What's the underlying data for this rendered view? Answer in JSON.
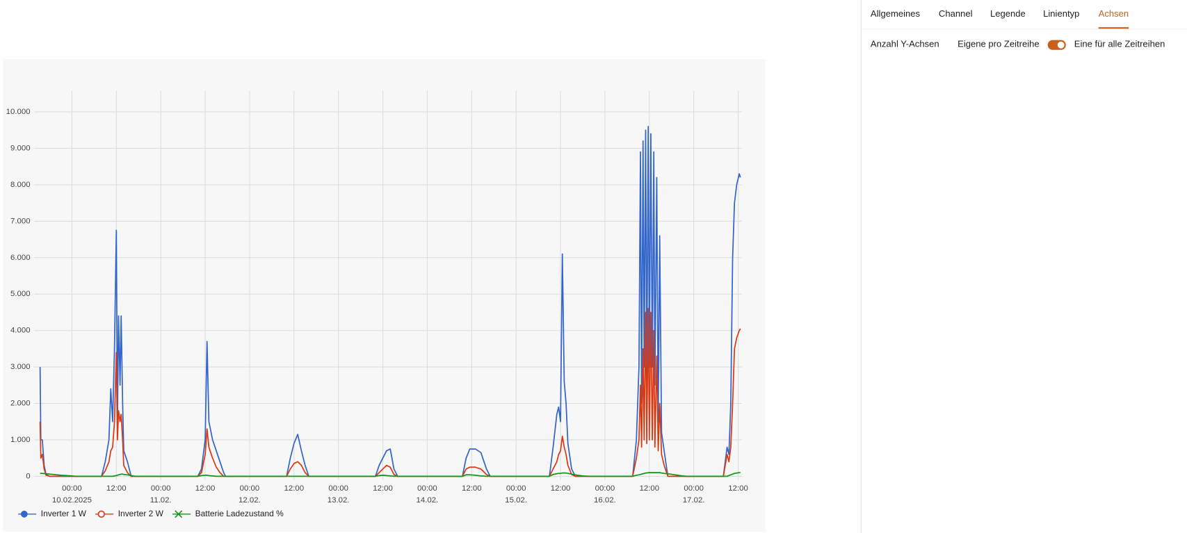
{
  "tabs": [
    "Allgemeines",
    "Channel",
    "Legende",
    "Linientyp",
    "Achsen"
  ],
  "active_tab": 4,
  "axes_setting": {
    "label": "Anzahl Y-Achsen",
    "option_left": "Eigene pro Zeitreihe",
    "option_right": "Eine für alle Zeitreihen",
    "toggle_on": true
  },
  "chart_data": {
    "type": "line",
    "x": [
      "2025-02-09 15:24",
      "2025-02-09 15:36",
      "2025-02-09 16:00",
      "2025-02-09 16:30",
      "2025-02-09 17:00",
      "2025-02-09 18:00",
      "2025-02-09 21:00",
      "2025-02-10 00:00",
      "2025-02-10 01:00",
      "2025-02-10 08:00",
      "2025-02-10 09:00",
      "2025-02-10 10:00",
      "2025-02-10 10:30",
      "2025-02-10 11:00",
      "2025-02-10 11:30",
      "2025-02-10 12:00",
      "2025-02-10 12:18",
      "2025-02-10 12:36",
      "2025-02-10 13:00",
      "2025-02-10 13:18",
      "2025-02-10 13:42",
      "2025-02-10 14:00",
      "2025-02-10 15:00",
      "2025-02-10 16:00",
      "2025-02-10 17:00",
      "2025-02-11 10:00",
      "2025-02-11 11:00",
      "2025-02-11 12:00",
      "2025-02-11 12:30",
      "2025-02-11 13:00",
      "2025-02-11 14:00",
      "2025-02-11 15:00",
      "2025-02-11 16:00",
      "2025-02-11 17:00",
      "2025-02-11 17:30",
      "2025-02-12 10:00",
      "2025-02-12 11:00",
      "2025-02-12 12:00",
      "2025-02-12 13:00",
      "2025-02-12 14:00",
      "2025-02-12 15:00",
      "2025-02-12 16:00",
      "2025-02-13 10:00",
      "2025-02-13 11:00",
      "2025-02-13 12:00",
      "2025-02-13 13:00",
      "2025-02-13 14:00",
      "2025-02-13 15:00",
      "2025-02-13 16:00",
      "2025-02-14 09:30",
      "2025-02-14 10:30",
      "2025-02-14 11:30",
      "2025-02-14 13:00",
      "2025-02-14 14:30",
      "2025-02-14 16:00",
      "2025-02-14 17:00",
      "2025-02-15 09:00",
      "2025-02-15 10:00",
      "2025-02-15 11:00",
      "2025-02-15 11:30",
      "2025-02-15 12:00",
      "2025-02-15 12:30",
      "2025-02-15 13:00",
      "2025-02-15 13:30",
      "2025-02-15 14:00",
      "2025-02-15 15:00",
      "2025-02-15 16:00",
      "2025-02-15 18:00",
      "2025-02-15 20:00",
      "2025-02-16 07:30",
      "2025-02-16 08:30",
      "2025-02-16 09:12",
      "2025-02-16 09:36",
      "2025-02-16 09:54",
      "2025-02-16 10:18",
      "2025-02-16 10:36",
      "2025-02-16 11:00",
      "2025-02-16 11:18",
      "2025-02-16 11:42",
      "2025-02-16 12:00",
      "2025-02-16 12:24",
      "2025-02-16 12:48",
      "2025-02-16 13:12",
      "2025-02-16 13:30",
      "2025-02-16 14:00",
      "2025-02-16 14:24",
      "2025-02-16 14:48",
      "2025-02-16 15:18",
      "2025-02-16 16:00",
      "2025-02-16 17:00",
      "2025-02-16 19:00",
      "2025-02-16 21:00",
      "2025-02-16 22:00",
      "2025-02-17 08:00",
      "2025-02-17 09:00",
      "2025-02-17 09:30",
      "2025-02-17 10:00",
      "2025-02-17 10:30",
      "2025-02-17 11:00",
      "2025-02-17 11:36",
      "2025-02-17 12:18",
      "2025-02-17 12:36"
    ],
    "series": [
      {
        "name": "Inverter 1 W",
        "color": "#3366cc",
        "marker": "circle",
        "values": [
          3000,
          1000,
          1000,
          300,
          50,
          0,
          0,
          0,
          0,
          0,
          400,
          1000,
          2400,
          1500,
          3500,
          6750,
          1500,
          4400,
          2500,
          4400,
          2000,
          700,
          400,
          0,
          0,
          0,
          200,
          1000,
          3700,
          1500,
          1000,
          700,
          400,
          100,
          0,
          0,
          500,
          900,
          1150,
          700,
          300,
          0,
          0,
          300,
          500,
          700,
          750,
          200,
          0,
          0,
          500,
          750,
          750,
          650,
          200,
          0,
          0,
          800,
          1700,
          1900,
          1500,
          6100,
          2600,
          2000,
          900,
          200,
          0,
          0,
          0,
          0,
          1000,
          3000,
          8900,
          2000,
          9200,
          3000,
          9500,
          2500,
          9600,
          3000,
          9400,
          3000,
          8900,
          2500,
          8200,
          1500,
          6600,
          1200,
          700,
          0,
          0,
          0,
          0,
          0,
          800,
          600,
          2000,
          6000,
          7500,
          8000,
          8300,
          8200
        ]
      },
      {
        "name": "Inverter 2 W",
        "color": "#dc3912",
        "marker": "open-circle",
        "values": [
          1500,
          500,
          600,
          200,
          30,
          0,
          0,
          0,
          0,
          0,
          150,
          400,
          700,
          800,
          1500,
          3400,
          1000,
          1800,
          1500,
          1700,
          1000,
          300,
          100,
          0,
          0,
          0,
          100,
          600,
          1300,
          800,
          500,
          250,
          100,
          0,
          0,
          0,
          200,
          350,
          400,
          300,
          100,
          0,
          0,
          100,
          200,
          300,
          250,
          50,
          0,
          0,
          200,
          250,
          250,
          200,
          50,
          0,
          0,
          200,
          400,
          600,
          700,
          1100,
          800,
          600,
          300,
          50,
          0,
          0,
          0,
          0,
          500,
          1000,
          2500,
          800,
          3500,
          1000,
          4500,
          900,
          4600,
          1000,
          4500,
          1000,
          4000,
          800,
          3300,
          700,
          2000,
          600,
          300,
          0,
          0,
          0,
          0,
          0,
          600,
          400,
          800,
          2000,
          3500,
          3800,
          4000,
          4050
        ]
      },
      {
        "name": "Batterie Ladezustand %",
        "color": "#109618",
        "marker": "cross",
        "values": [
          80,
          80,
          80,
          75,
          70,
          60,
          30,
          10,
          0,
          0,
          0,
          0,
          0,
          0,
          10,
          20,
          30,
          40,
          50,
          60,
          60,
          50,
          40,
          20,
          0,
          0,
          20,
          30,
          30,
          20,
          10,
          0,
          0,
          0,
          0,
          0,
          0,
          0,
          0,
          0,
          0,
          0,
          0,
          20,
          30,
          20,
          10,
          0,
          0,
          0,
          40,
          40,
          30,
          10,
          0,
          0,
          0,
          50,
          70,
          80,
          80,
          90,
          90,
          90,
          80,
          60,
          40,
          10,
          0,
          0,
          30,
          40,
          50,
          60,
          70,
          80,
          90,
          90,
          100,
          100,
          100,
          100,
          100,
          100,
          100,
          100,
          100,
          90,
          80,
          70,
          40,
          10,
          0,
          0,
          0,
          20,
          40,
          60,
          80,
          90,
          100,
          100
        ]
      }
    ],
    "xlim": [
      "2025-02-09 15:00",
      "2025-02-17 13:00"
    ],
    "xticks": [
      {
        "value": "2025-02-10 00:00",
        "label": "00:00",
        "date": "10.02.2025"
      },
      {
        "value": "2025-02-10 12:00",
        "label": "12:00"
      },
      {
        "value": "2025-02-11 00:00",
        "label": "00:00",
        "date": "11.02."
      },
      {
        "value": "2025-02-11 12:00",
        "label": "12:00"
      },
      {
        "value": "2025-02-12 00:00",
        "label": "00:00",
        "date": "12.02."
      },
      {
        "value": "2025-02-12 12:00",
        "label": "12:00"
      },
      {
        "value": "2025-02-13 00:00",
        "label": "00:00",
        "date": "13.02."
      },
      {
        "value": "2025-02-13 12:00",
        "label": "12:00"
      },
      {
        "value": "2025-02-14 00:00",
        "label": "00:00",
        "date": "14.02."
      },
      {
        "value": "2025-02-14 12:00",
        "label": "12:00"
      },
      {
        "value": "2025-02-15 00:00",
        "label": "00:00",
        "date": "15.02."
      },
      {
        "value": "2025-02-15 12:00",
        "label": "12:00"
      },
      {
        "value": "2025-02-16 00:00",
        "label": "00:00",
        "date": "16.02."
      },
      {
        "value": "2025-02-16 12:00",
        "label": "12:00"
      },
      {
        "value": "2025-02-17 00:00",
        "label": "00:00",
        "date": "17.02."
      },
      {
        "value": "2025-02-17 12:00",
        "label": "12:00"
      }
    ],
    "ylim": [
      0,
      10580
    ],
    "yticks": [
      0,
      {
        "value": 1000,
        "label": "1.000"
      },
      {
        "value": 2000,
        "label": "2.000"
      },
      {
        "value": 3000,
        "label": "3.000"
      },
      {
        "value": 4000,
        "label": "4.000"
      },
      {
        "value": 5000,
        "label": "5.000"
      },
      {
        "value": 6000,
        "label": "6.000"
      },
      {
        "value": 7000,
        "label": "7.000"
      },
      {
        "value": 8000,
        "label": "8.000"
      },
      {
        "value": 9000,
        "label": "9.000"
      },
      {
        "value": 10000,
        "label": "10.000"
      }
    ],
    "grid": true,
    "legend": "bottom-left"
  }
}
